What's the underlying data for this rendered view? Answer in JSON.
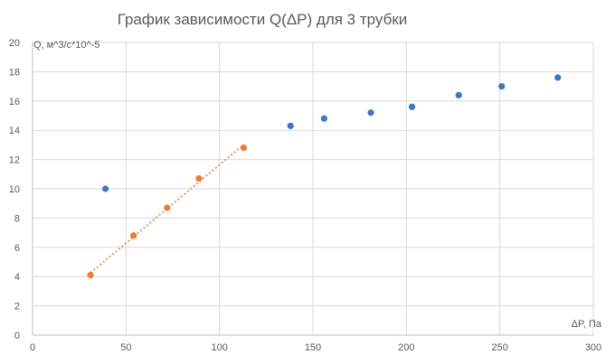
{
  "chart_data": {
    "type": "scatter",
    "title": "График зависимости Q(ΔP) для 3 трубки",
    "xlabel": "ΔP, Па",
    "ylabel": "Q, м^3/с*10^-5",
    "xlim": [
      0,
      300
    ],
    "ylim": [
      0,
      20
    ],
    "x_ticks": [
      0,
      50,
      100,
      150,
      200,
      250,
      300
    ],
    "y_ticks": [
      0,
      2,
      4,
      6,
      8,
      10,
      12,
      14,
      16,
      18,
      20
    ],
    "grid": true,
    "legend": "none",
    "series": [
      {
        "color": "#4472C4",
        "trendline": false,
        "points": [
          {
            "x": 39,
            "y": 10.0
          },
          {
            "x": 138,
            "y": 14.3
          },
          {
            "x": 156,
            "y": 14.8
          },
          {
            "x": 181,
            "y": 15.2
          },
          {
            "x": 203,
            "y": 15.6
          },
          {
            "x": 228,
            "y": 16.4
          },
          {
            "x": 251,
            "y": 17.0
          },
          {
            "x": 281,
            "y": 17.6
          }
        ]
      },
      {
        "color": "#ED7D31",
        "trendline": true,
        "points": [
          {
            "x": 31,
            "y": 4.1
          },
          {
            "x": 54,
            "y": 6.8
          },
          {
            "x": 72,
            "y": 8.7
          },
          {
            "x": 89,
            "y": 10.7
          },
          {
            "x": 113,
            "y": 12.8
          }
        ]
      }
    ]
  }
}
